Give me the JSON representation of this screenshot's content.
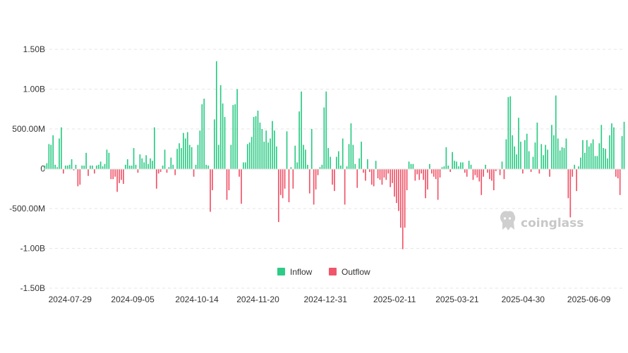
{
  "chart_data": {
    "type": "bar",
    "ylim": [
      -1.5,
      1.5
    ],
    "y_unit": "billions",
    "grid": "horizontal dashed",
    "legend_position": "bottom-center",
    "y_ticks": [
      {
        "value": 1.5,
        "label": "1.50B"
      },
      {
        "value": 1.0,
        "label": "1.00B"
      },
      {
        "value": 0.5,
        "label": "500.00M"
      },
      {
        "value": 0,
        "label": "0"
      },
      {
        "value": -0.5,
        "label": "-500.00M"
      },
      {
        "value": -1.0,
        "label": "-1.00B"
      },
      {
        "value": -1.5,
        "label": "-1.50B"
      }
    ],
    "x_ticks": [
      {
        "date": "2024-07-29",
        "label": "2024-07-29"
      },
      {
        "date": "2024-09-05",
        "label": "2024-09-05"
      },
      {
        "date": "2024-10-14",
        "label": "2024-10-14"
      },
      {
        "date": "2024-11-20",
        "label": "2024-11-20"
      },
      {
        "date": "2024-12-31",
        "label": "2024-12-31"
      },
      {
        "date": "2025-02-11",
        "label": "2025-02-11"
      },
      {
        "date": "2025-03-21",
        "label": "2025-03-21"
      },
      {
        "date": "2025-04-30",
        "label": "2025-04-30"
      },
      {
        "date": "2025-06-09",
        "label": "2025-06-09"
      }
    ],
    "series": [
      {
        "name": "Inflow",
        "color": "#2ecb86"
      },
      {
        "name": "Outflow",
        "color": "#f0566a"
      }
    ],
    "values": [
      0.04,
      0.07,
      0.31,
      0.3,
      0.42,
      0.05,
      0.02,
      0.38,
      0.52,
      -0.06,
      0.04,
      0.04,
      0.05,
      0.12,
      -0.02,
      0.05,
      -0.22,
      -0.2,
      0.04,
      0.04,
      0.2,
      -0.09,
      0.04,
      0.04,
      -0.06,
      0.04,
      0.05,
      0.09,
      0.03,
      0.06,
      0.24,
      0.2,
      -0.13,
      -0.13,
      -0.1,
      -0.29,
      -0.18,
      -0.14,
      -0.19,
      0.05,
      0.12,
      0.04,
      0.04,
      0.26,
      0.05,
      -0.05,
      0.18,
      0.13,
      0.08,
      0.17,
      0.06,
      0.13,
      0.1,
      0.52,
      -0.25,
      -0.06,
      -0.04,
      0.04,
      0.24,
      -0.05,
      0.02,
      0.14,
      0.05,
      -0.08,
      0.25,
      0.32,
      0.26,
      0.45,
      0.38,
      0.46,
      0.3,
      0.27,
      -0.1,
      0.05,
      0.3,
      0.48,
      0.81,
      0.88,
      0.05,
      0.04,
      -0.54,
      -0.27,
      0.62,
      1.35,
      0.3,
      1.05,
      0.82,
      0.65,
      -0.39,
      -0.27,
      0.3,
      0.8,
      0.81,
      1.0,
      -0.1,
      -0.44,
      0.08,
      0.08,
      0.31,
      0.33,
      0.4,
      0.65,
      0.66,
      0.73,
      0.58,
      0.5,
      0.34,
      0.48,
      0.33,
      0.38,
      0.6,
      0.48,
      0.28,
      -0.67,
      -0.33,
      -0.37,
      -0.25,
      0.47,
      -0.42,
      0.02,
      -0.25,
      0.29,
      0.08,
      0.72,
      0.97,
      0.3,
      0.24,
      0.05,
      -0.31,
      0.5,
      -0.45,
      -0.26,
      -0.08,
      0.02,
      0.05,
      0.77,
      0.97,
      0.26,
      0.15,
      -0.2,
      -0.28,
      0.15,
      0.22,
      0.04,
      0.38,
      -0.45,
      0.03,
      0.31,
      0.57,
      0.3,
      0.06,
      -0.24,
      0.13,
      0.34,
      -0.05,
      -0.15,
      0.12,
      -0.04,
      -0.2,
      -0.22,
      0.1,
      -0.12,
      -0.14,
      -0.2,
      -0.11,
      -0.14,
      -0.06,
      -0.23,
      -0.18,
      -0.35,
      -0.43,
      -0.53,
      -0.74,
      -1.01,
      -0.74,
      -0.27,
      0.09,
      0.06,
      0.06,
      -0.15,
      -0.07,
      -0.14,
      -0.06,
      -0.14,
      -0.37,
      -0.26,
      0.06,
      -0.06,
      -0.1,
      -0.13,
      -0.39,
      -0.11,
      0.02,
      0.03,
      0.27,
      0.04,
      -0.04,
      0.21,
      0.1,
      0.09,
      0.03,
      0.08,
      0.08,
      -0.05,
      -0.1,
      0.1,
      0.05,
      -0.14,
      -0.08,
      -0.11,
      -0.16,
      -0.33,
      -0.1,
      0.05,
      -0.05,
      -0.13,
      -0.15,
      -0.27,
      -0.03,
      -0.01,
      -0.08,
      0.09,
      -0.13,
      0.37,
      0.9,
      0.91,
      0.42,
      0.28,
      0.18,
      0.64,
      0.34,
      -0.06,
      0.36,
      0.44,
      0.22,
      -0.04,
      0.15,
      0.33,
      0.58,
      -0.06,
      0.31,
      0.17,
      0.3,
      0.24,
      -0.1,
      0.55,
      0.42,
      0.92,
      0.38,
      0.23,
      0.27,
      0.26,
      0.38,
      -0.37,
      -0.61,
      -0.1,
      0.05,
      -0.28,
      0.03,
      0.14,
      0.36,
      0.2,
      0.36,
      0.28,
      0.32,
      0.37,
      0.16,
      0.16,
      0.32,
      0.55,
      0.26,
      0.25,
      0.13,
      0.42,
      0.57,
      0.52,
      -0.1,
      -0.12,
      -0.33,
      0.41,
      0.59
    ]
  },
  "legend": {
    "inflow": "Inflow",
    "outflow": "Outflow"
  },
  "watermark": {
    "text": "coinglass"
  }
}
